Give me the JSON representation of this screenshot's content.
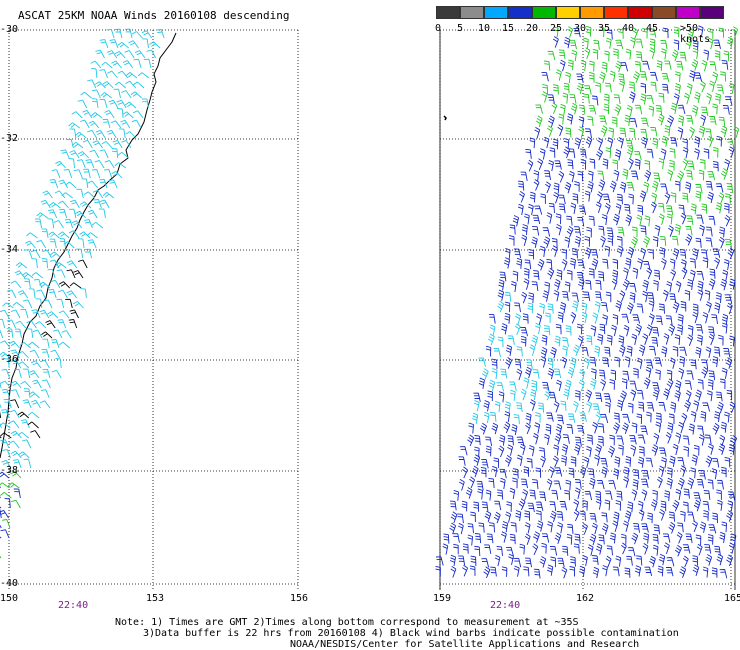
{
  "title": "ASCAT 25KM NOAA Winds 20160108 descending",
  "scale": {
    "labels": [
      "0",
      "5",
      "10",
      "15",
      "20",
      "25",
      "30",
      "35",
      "40",
      "45",
      ">50 knots"
    ],
    "colors": [
      "#3a3a3a",
      "#8c8c8c",
      "#00a8ff",
      "#1430c8",
      "#00b800",
      "#ffd000",
      "#ff9a00",
      "#ff3000",
      "#d00000",
      "#8a4a28",
      "#c000c8",
      "#5a007a"
    ]
  },
  "axes": {
    "lat_labels": [
      "-30",
      "-32",
      "-34",
      "-36",
      "-38",
      "-40"
    ],
    "lon_labels_left": [
      "150",
      "153",
      "156"
    ],
    "lon_labels_right": [
      "159",
      "162",
      "165"
    ]
  },
  "times": [
    "22:40",
    "22:40"
  ],
  "notes": {
    "line1": "Note: 1) Times are GMT 2)Times along bottom correspond to measurement at ~35S",
    "line2": "3)Data buffer is 22 hrs from 20160108 4) Black wind barbs indicate possible contamination",
    "line3": "NOAA/NESDIS/Center for Satellite Applications and Research"
  },
  "barb_colors": {
    "light_blue": "#22c8e8",
    "dark_blue": "#1428c8",
    "green": "#20c820",
    "black": "#000000"
  }
}
